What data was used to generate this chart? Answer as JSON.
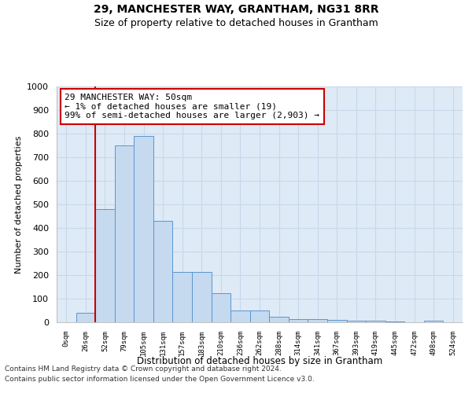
{
  "title": "29, MANCHESTER WAY, GRANTHAM, NG31 8RR",
  "subtitle": "Size of property relative to detached houses in Grantham",
  "xlabel": "Distribution of detached houses by size in Grantham",
  "ylabel": "Number of detached properties",
  "categories": [
    "0sqm",
    "26sqm",
    "52sqm",
    "79sqm",
    "105sqm",
    "131sqm",
    "157sqm",
    "183sqm",
    "210sqm",
    "236sqm",
    "262sqm",
    "288sqm",
    "314sqm",
    "341sqm",
    "367sqm",
    "393sqm",
    "419sqm",
    "445sqm",
    "472sqm",
    "498sqm",
    "524sqm"
  ],
  "values": [
    0,
    40,
    480,
    750,
    790,
    430,
    215,
    215,
    125,
    50,
    50,
    25,
    12,
    12,
    10,
    8,
    8,
    5,
    0,
    8,
    0
  ],
  "bar_color": "#c5d9ef",
  "bar_edge_color": "#5a96d0",
  "highlight_index": 2,
  "highlight_line_color": "#cc0000",
  "ylim": [
    0,
    1000
  ],
  "yticks": [
    0,
    100,
    200,
    300,
    400,
    500,
    600,
    700,
    800,
    900,
    1000
  ],
  "annotation_text": "29 MANCHESTER WAY: 50sqm\n← 1% of detached houses are smaller (19)\n99% of semi-detached houses are larger (2,903) →",
  "annotation_box_color": "#ffffff",
  "annotation_box_edge_color": "#cc0000",
  "footer_line1": "Contains HM Land Registry data © Crown copyright and database right 2024.",
  "footer_line2": "Contains public sector information licensed under the Open Government Licence v3.0.",
  "grid_color": "#c8d8ea",
  "bg_color": "#deeaf6",
  "title_fontsize": 10,
  "subtitle_fontsize": 9
}
